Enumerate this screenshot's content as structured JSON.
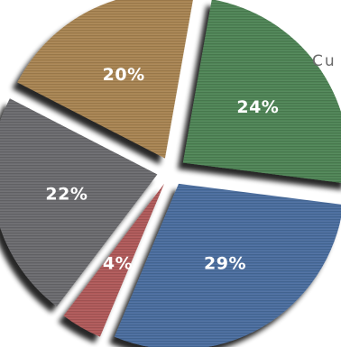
{
  "chart_data": {
    "type": "pie",
    "title_visible_fragment": "Cu",
    "slices": [
      {
        "label": "24%",
        "value": 24,
        "color": "#4f8556"
      },
      {
        "label": "29%",
        "value": 29,
        "color": "#4b6e9f"
      },
      {
        "label": "4%",
        "value": 4,
        "color": "#b05a5a"
      },
      {
        "label": "22%",
        "value": 22,
        "color": "#6c6c6f"
      },
      {
        "label": "20%",
        "value": 20,
        "color": "#a98552"
      }
    ],
    "style": {
      "exploded": true,
      "texture": "horizontal-grain",
      "shadow": true
    }
  }
}
